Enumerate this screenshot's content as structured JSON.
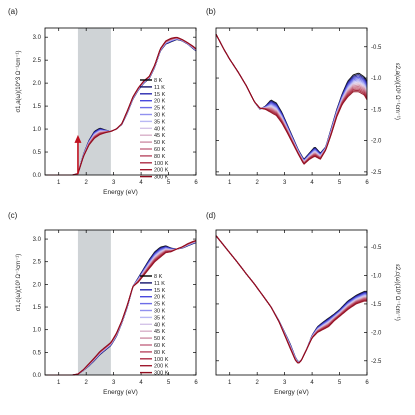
{
  "temperatures": [
    "8 K",
    "11 K",
    "15 K",
    "20 K",
    "25 K",
    "30 K",
    "35 K",
    "40 K",
    "45 K",
    "50 K",
    "60 K",
    "80 K",
    "100 K",
    "200 K",
    "300 K"
  ],
  "legend_colors": [
    "#000000",
    "#13136b",
    "#2a2ab0",
    "#4a4ade",
    "#6d6de8",
    "#9191ef",
    "#b8b8f4",
    "#d4c4e8",
    "#d8b0c8",
    "#cf8fa6",
    "#c46a84",
    "#b94a63",
    "#ad2e45",
    "#a01a2f",
    "#8e0b1c"
  ],
  "shade_color": "#cfd3d6",
  "arrow_color": "#c0111f",
  "chart_data": [
    {
      "panel": "(a)",
      "type": "line",
      "xlabel": "Energy (eV)",
      "ylabel": "σ1,a(ω)(10^3 Ω⁻¹cm⁻¹)",
      "xlim": [
        0.5,
        6
      ],
      "ylim": [
        0,
        3.2
      ],
      "x_ticks": [
        "1",
        "2",
        "3",
        "4",
        "5",
        "6"
      ],
      "y_ticks": [
        "0.0",
        "0.5",
        "1.0",
        "1.5",
        "2.0",
        "2.5",
        "3.0"
      ],
      "shaded_region": [
        1.7,
        2.9
      ],
      "arrow_x": 1.7,
      "series": [
        {
          "name": "8 K",
          "x": [
            0.5,
            1.0,
            1.5,
            1.7,
            1.9,
            2.1,
            2.3,
            2.5,
            2.7,
            2.9,
            3.1,
            3.3,
            3.5,
            3.7,
            3.9,
            4.1,
            4.3,
            4.5,
            4.7,
            4.9,
            5.1,
            5.3,
            5.5,
            5.7,
            5.9,
            6.0
          ],
          "y": [
            0.0,
            0.0,
            0.0,
            0.03,
            0.45,
            0.75,
            0.95,
            1.02,
            0.98,
            0.95,
            1.0,
            1.1,
            1.35,
            1.65,
            1.85,
            2.0,
            2.1,
            2.35,
            2.7,
            2.85,
            2.9,
            2.95,
            2.92,
            2.85,
            2.75,
            2.7
          ]
        },
        {
          "name": "300 K",
          "x": [
            0.5,
            1.0,
            1.5,
            1.7,
            1.9,
            2.1,
            2.3,
            2.5,
            2.7,
            2.9,
            3.1,
            3.3,
            3.5,
            3.7,
            3.9,
            4.1,
            4.3,
            4.5,
            4.7,
            4.9,
            5.1,
            5.3,
            5.5,
            5.7,
            5.9,
            6.0
          ],
          "y": [
            0.0,
            0.0,
            0.0,
            0.03,
            0.4,
            0.65,
            0.8,
            0.88,
            0.92,
            0.95,
            1.0,
            1.12,
            1.4,
            1.7,
            1.9,
            2.05,
            2.15,
            2.4,
            2.75,
            2.92,
            2.98,
            3.0,
            2.95,
            2.88,
            2.8,
            2.75
          ]
        }
      ]
    },
    {
      "panel": "(b)",
      "type": "line",
      "xlabel": "",
      "ylabel": "ε2,a(ω)(10³ Ω⁻¹cm⁻¹)",
      "xlim": [
        0.5,
        6
      ],
      "ylim": [
        -2.55,
        -0.2
      ],
      "x_ticks": [
        "1",
        "2",
        "3",
        "4",
        "5",
        "6"
      ],
      "y_ticks": [
        "-0.5",
        "-1.0",
        "-1.5",
        "-2.0",
        "-2.5"
      ],
      "series": [
        {
          "name": "8 K",
          "x": [
            0.5,
            0.8,
            1.0,
            1.3,
            1.6,
            1.9,
            2.1,
            2.3,
            2.5,
            2.7,
            2.9,
            3.1,
            3.3,
            3.5,
            3.7,
            3.9,
            4.1,
            4.3,
            4.5,
            4.7,
            4.9,
            5.1,
            5.3,
            5.5,
            5.7,
            5.9,
            6.0
          ],
          "y": [
            -0.3,
            -0.55,
            -0.7,
            -0.9,
            -1.12,
            -1.38,
            -1.5,
            -1.45,
            -1.35,
            -1.4,
            -1.55,
            -1.75,
            -1.95,
            -2.15,
            -2.3,
            -2.2,
            -2.1,
            -2.2,
            -2.1,
            -1.8,
            -1.5,
            -1.25,
            -1.05,
            -0.95,
            -0.92,
            -0.98,
            -1.05
          ]
        },
        {
          "name": "300 K",
          "x": [
            0.5,
            0.8,
            1.0,
            1.3,
            1.6,
            1.9,
            2.1,
            2.3,
            2.5,
            2.7,
            2.9,
            3.1,
            3.3,
            3.5,
            3.7,
            3.9,
            4.1,
            4.3,
            4.5,
            4.7,
            4.9,
            5.1,
            5.3,
            5.5,
            5.7,
            5.9,
            6.0
          ],
          "y": [
            -0.3,
            -0.55,
            -0.7,
            -0.9,
            -1.12,
            -1.38,
            -1.48,
            -1.5,
            -1.55,
            -1.6,
            -1.72,
            -1.88,
            -2.05,
            -2.22,
            -2.38,
            -2.3,
            -2.25,
            -2.3,
            -2.15,
            -1.9,
            -1.62,
            -1.42,
            -1.3,
            -1.22,
            -1.22,
            -1.27,
            -1.35
          ]
        }
      ]
    },
    {
      "panel": "(c)",
      "type": "line",
      "xlabel": "Energy (eV)",
      "ylabel": "σ1,c(ω)(10³ Ω⁻¹cm⁻¹)",
      "xlim": [
        0.5,
        6
      ],
      "ylim": [
        0,
        3.2
      ],
      "x_ticks": [
        "1",
        "2",
        "3",
        "4",
        "5",
        "6"
      ],
      "y_ticks": [
        "0.0",
        "0.5",
        "1.0",
        "1.5",
        "2.0",
        "2.5",
        "3.0"
      ],
      "shaded_region": [
        1.7,
        2.9
      ],
      "series": [
        {
          "name": "8 K",
          "x": [
            0.5,
            1.0,
            1.5,
            1.7,
            1.9,
            2.1,
            2.3,
            2.5,
            2.7,
            2.9,
            3.1,
            3.3,
            3.5,
            3.7,
            3.9,
            4.1,
            4.3,
            4.5,
            4.7,
            4.9,
            5.1,
            5.3,
            5.5,
            5.7,
            5.9,
            6.0
          ],
          "y": [
            0.0,
            0.0,
            0.0,
            0.02,
            0.1,
            0.2,
            0.32,
            0.45,
            0.55,
            0.65,
            0.85,
            1.15,
            1.5,
            1.95,
            2.15,
            2.35,
            2.55,
            2.72,
            2.82,
            2.85,
            2.8,
            2.78,
            2.8,
            2.85,
            2.9,
            2.92
          ]
        },
        {
          "name": "300 K",
          "x": [
            0.5,
            1.0,
            1.5,
            1.7,
            1.9,
            2.1,
            2.3,
            2.5,
            2.7,
            2.9,
            3.1,
            3.3,
            3.5,
            3.7,
            3.9,
            4.1,
            4.3,
            4.5,
            4.7,
            4.9,
            5.1,
            5.3,
            5.5,
            5.7,
            5.9,
            6.0
          ],
          "y": [
            0.0,
            0.0,
            0.0,
            0.02,
            0.12,
            0.25,
            0.38,
            0.52,
            0.62,
            0.72,
            0.92,
            1.2,
            1.55,
            1.95,
            2.05,
            2.2,
            2.35,
            2.5,
            2.6,
            2.7,
            2.72,
            2.78,
            2.83,
            2.9,
            2.95,
            2.97
          ]
        }
      ]
    },
    {
      "panel": "(d)",
      "type": "line",
      "xlabel": "Energy (eV)",
      "ylabel": "ε2,c(ω)(10³ Ω⁻¹cm⁻¹)",
      "xlim": [
        0.5,
        6
      ],
      "ylim": [
        -2.75,
        -0.2
      ],
      "x_ticks": [
        "1",
        "2",
        "3",
        "4",
        "5",
        "6"
      ],
      "y_ticks": [
        "-0.5",
        "-1.0",
        "-1.5",
        "-2.0",
        "-2.5"
      ],
      "series": [
        {
          "name": "8 K",
          "x": [
            0.5,
            0.8,
            1.0,
            1.3,
            1.6,
            1.9,
            2.2,
            2.5,
            2.8,
            3.0,
            3.2,
            3.4,
            3.5,
            3.6,
            3.8,
            4.0,
            4.2,
            4.4,
            4.6,
            4.8,
            5.0,
            5.3,
            5.6,
            5.9,
            6.0
          ],
          "y": [
            -0.3,
            -0.48,
            -0.6,
            -0.78,
            -0.97,
            -1.15,
            -1.35,
            -1.55,
            -1.8,
            -2.0,
            -2.2,
            -2.45,
            -2.52,
            -2.5,
            -2.3,
            -2.05,
            -1.9,
            -1.82,
            -1.75,
            -1.68,
            -1.6,
            -1.45,
            -1.35,
            -1.28,
            -1.28
          ]
        },
        {
          "name": "300 K",
          "x": [
            0.5,
            0.8,
            1.0,
            1.3,
            1.6,
            1.9,
            2.2,
            2.5,
            2.8,
            3.0,
            3.2,
            3.4,
            3.5,
            3.6,
            3.8,
            4.0,
            4.2,
            4.4,
            4.6,
            4.8,
            5.0,
            5.3,
            5.6,
            5.9,
            6.0
          ],
          "y": [
            -0.3,
            -0.48,
            -0.6,
            -0.78,
            -0.97,
            -1.15,
            -1.35,
            -1.55,
            -1.82,
            -2.05,
            -2.28,
            -2.5,
            -2.55,
            -2.5,
            -2.3,
            -2.1,
            -2.0,
            -1.95,
            -1.9,
            -1.8,
            -1.72,
            -1.6,
            -1.5,
            -1.45,
            -1.45
          ]
        }
      ]
    }
  ]
}
